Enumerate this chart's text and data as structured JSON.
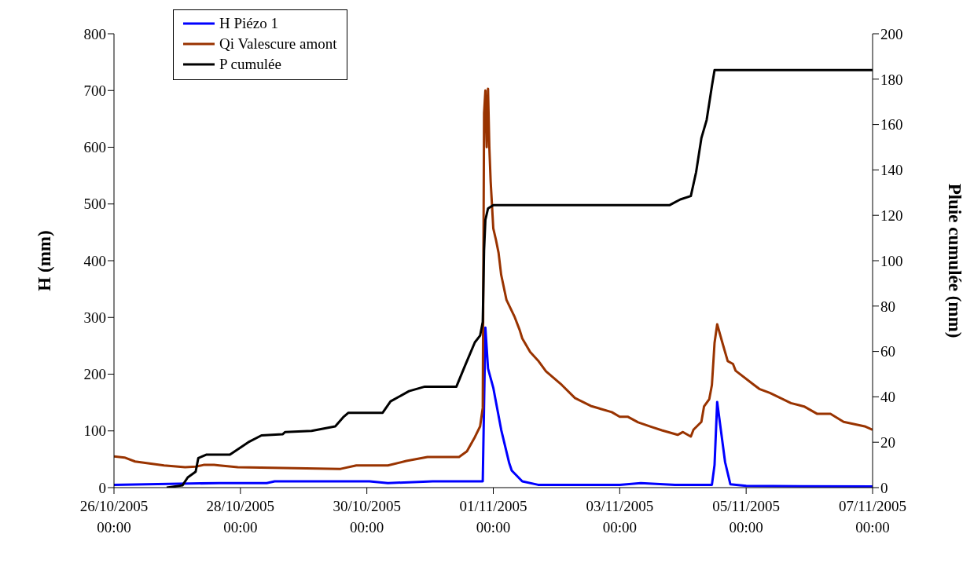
{
  "chart_data": {
    "type": "line",
    "ylabel": "H (mm)",
    "y2label": "Pluie cumulée (mm)",
    "legend": "top left",
    "xlim": [
      "2005-10-26T00:00",
      "2005-11-07T00:00"
    ],
    "xticks": [
      {
        "value": "2005-10-26T00:00",
        "label": "26/10/2005 00:00"
      },
      {
        "value": "2005-10-28T00:00",
        "label": "28/10/2005 00:00"
      },
      {
        "value": "2005-10-30T00:00",
        "label": "30/10/2005 00:00"
      },
      {
        "value": "2005-11-01T00:00",
        "label": "01/11/2005 00:00"
      },
      {
        "value": "2005-11-03T00:00",
        "label": "03/11/2005 00:00"
      },
      {
        "value": "2005-11-05T00:00",
        "label": "05/11/2005 00:00"
      },
      {
        "value": "2005-11-07T00:00",
        "label": "07/11/2005 00:00"
      }
    ],
    "ylim": [
      0,
      800
    ],
    "yticks": [
      0,
      100,
      200,
      300,
      400,
      500,
      600,
      700,
      800
    ],
    "y2lim": [
      0,
      200
    ],
    "y2ticks": [
      0,
      20,
      40,
      60,
      80,
      100,
      120,
      140,
      160,
      180,
      200
    ],
    "series": [
      {
        "name": "H Piézo 1",
        "color": "#0000ff",
        "x": [
          "2005-10-26T00:00",
          "2005-10-27T16:00",
          "2005-10-28T10:00",
          "2005-10-28T13:00",
          "2005-10-30T01:00",
          "2005-10-30T08:00",
          "2005-10-31T01:00",
          "2005-10-31T20:00",
          "2005-10-31T21:00",
          "2005-10-31T22:00",
          "2005-11-01T00:00",
          "2005-11-01T03:00",
          "2005-11-01T06:00",
          "2005-11-01T07:00",
          "2005-11-01T11:00",
          "2005-11-01T17:00",
          "2005-11-03T00:00",
          "2005-11-03T08:00",
          "2005-11-03T21:00",
          "2005-11-04T11:00",
          "2005-11-04T12:00",
          "2005-11-04T13:00",
          "2005-11-04T16:00",
          "2005-11-04T18:00",
          "2005-11-05T00:00",
          "2005-11-07T00:00"
        ],
        "values": [
          5,
          8,
          8,
          11,
          11,
          8,
          11,
          11,
          282,
          210,
          176,
          102,
          44,
          30,
          11,
          5,
          5,
          8,
          5,
          5,
          40,
          151,
          45,
          6,
          3,
          2
        ]
      },
      {
        "name": "Qi Valescure amont",
        "color": "#993300",
        "x": [
          "2005-10-26T00:00",
          "2005-10-26T04:00",
          "2005-10-26T08:00",
          "2005-10-26T19:00",
          "2005-10-27T03:00",
          "2005-10-27T07:00",
          "2005-10-27T10:00",
          "2005-10-27T14:00",
          "2005-10-27T16:00",
          "2005-10-27T23:00",
          "2005-10-29T14:00",
          "2005-10-29T20:00",
          "2005-10-30T08:00",
          "2005-10-30T15:00",
          "2005-10-30T23:00",
          "2005-10-31T11:00",
          "2005-10-31T14:00",
          "2005-10-31T17:00",
          "2005-10-31T19:00",
          "2005-10-31T20:00",
          "2005-10-31T20:30",
          "2005-10-31T21:00",
          "2005-10-31T21:30",
          "2005-10-31T22:00",
          "2005-10-31T22:30",
          "2005-10-31T23:00",
          "2005-11-01T00:00",
          "2005-11-01T01:00",
          "2005-11-01T02:00",
          "2005-11-01T03:00",
          "2005-11-01T05:00",
          "2005-11-01T08:00",
          "2005-11-01T10:00",
          "2005-11-01T11:00",
          "2005-11-01T14:00",
          "2005-11-01T17:00",
          "2005-11-01T20:00",
          "2005-11-02T02:00",
          "2005-11-02T07:00",
          "2005-11-02T13:00",
          "2005-11-02T21:00",
          "2005-11-03T00:00",
          "2005-11-03T03:00",
          "2005-11-03T07:00",
          "2005-11-03T12:00",
          "2005-11-03T16:00",
          "2005-11-03T22:00",
          "2005-11-04T00:00",
          "2005-11-04T03:00",
          "2005-11-04T04:00",
          "2005-11-04T07:00",
          "2005-11-04T08:00",
          "2005-11-04T10:00",
          "2005-11-04T11:00",
          "2005-11-04T12:00",
          "2005-11-04T13:00",
          "2005-11-04T15:00",
          "2005-11-04T17:00",
          "2005-11-04T19:00",
          "2005-11-04T20:00",
          "2005-11-05T03:00",
          "2005-11-05T05:00",
          "2005-11-05T09:00",
          "2005-11-05T17:00",
          "2005-11-05T22:00",
          "2005-11-06T03:00",
          "2005-11-06T08:00",
          "2005-11-06T13:00",
          "2005-11-06T21:00",
          "2005-11-07T00:00"
        ],
        "values": [
          55,
          53,
          46,
          39,
          36,
          37,
          40,
          40,
          39,
          36,
          33,
          39,
          39,
          47,
          54,
          54,
          64,
          89,
          108,
          141,
          660,
          700,
          600,
          703,
          600,
          540,
          457,
          437,
          414,
          375,
          331,
          302,
          278,
          263,
          239,
          224,
          205,
          181,
          158,
          144,
          133,
          125,
          125,
          115,
          107,
          101,
          93,
          98,
          90,
          102,
          116,
          143,
          156,
          181,
          255,
          288,
          255,
          223,
          218,
          206,
          181,
          174,
          167,
          149,
          143,
          130,
          130,
          116,
          108,
          102
        ]
      },
      {
        "name": "P cumulée",
        "color": "#000000",
        "axis": "y2",
        "x": [
          "2005-10-26T20:00",
          "2005-10-27T02:00",
          "2005-10-27T04:00",
          "2005-10-27T07:00",
          "2005-10-27T08:00",
          "2005-10-27T11:00",
          "2005-10-27T20:00",
          "2005-10-28T03:00",
          "2005-10-28T08:00",
          "2005-10-28T16:00",
          "2005-10-28T17:00",
          "2005-10-29T03:00",
          "2005-10-29T12:00",
          "2005-10-29T15:00",
          "2005-10-29T17:00",
          "2005-10-30T06:00",
          "2005-10-30T09:00",
          "2005-10-30T16:00",
          "2005-10-30T22:00",
          "2005-10-31T10:00",
          "2005-10-31T13:00",
          "2005-10-31T17:00",
          "2005-10-31T19:00",
          "2005-10-31T20:00",
          "2005-10-31T20:30",
          "2005-10-31T21:00",
          "2005-10-31T22:00",
          "2005-11-01T00:00",
          "2005-11-03T19:00",
          "2005-11-03T23:00",
          "2005-11-04T03:00",
          "2005-11-04T05:00",
          "2005-11-04T07:00",
          "2005-11-04T09:00",
          "2005-11-04T11:00",
          "2005-11-04T12:00",
          "2005-11-07T00:00"
        ],
        "values": [
          0,
          1,
          4.5,
          7,
          13,
          14.5,
          14.5,
          20,
          23,
          23.5,
          24.5,
          25,
          27,
          31,
          33,
          33,
          38,
          42.5,
          44.5,
          44.5,
          53,
          64,
          67,
          73,
          104.5,
          118,
          123,
          124.5,
          124.5,
          127,
          128.5,
          139,
          154,
          162,
          177,
          184,
          184
        ]
      }
    ]
  }
}
